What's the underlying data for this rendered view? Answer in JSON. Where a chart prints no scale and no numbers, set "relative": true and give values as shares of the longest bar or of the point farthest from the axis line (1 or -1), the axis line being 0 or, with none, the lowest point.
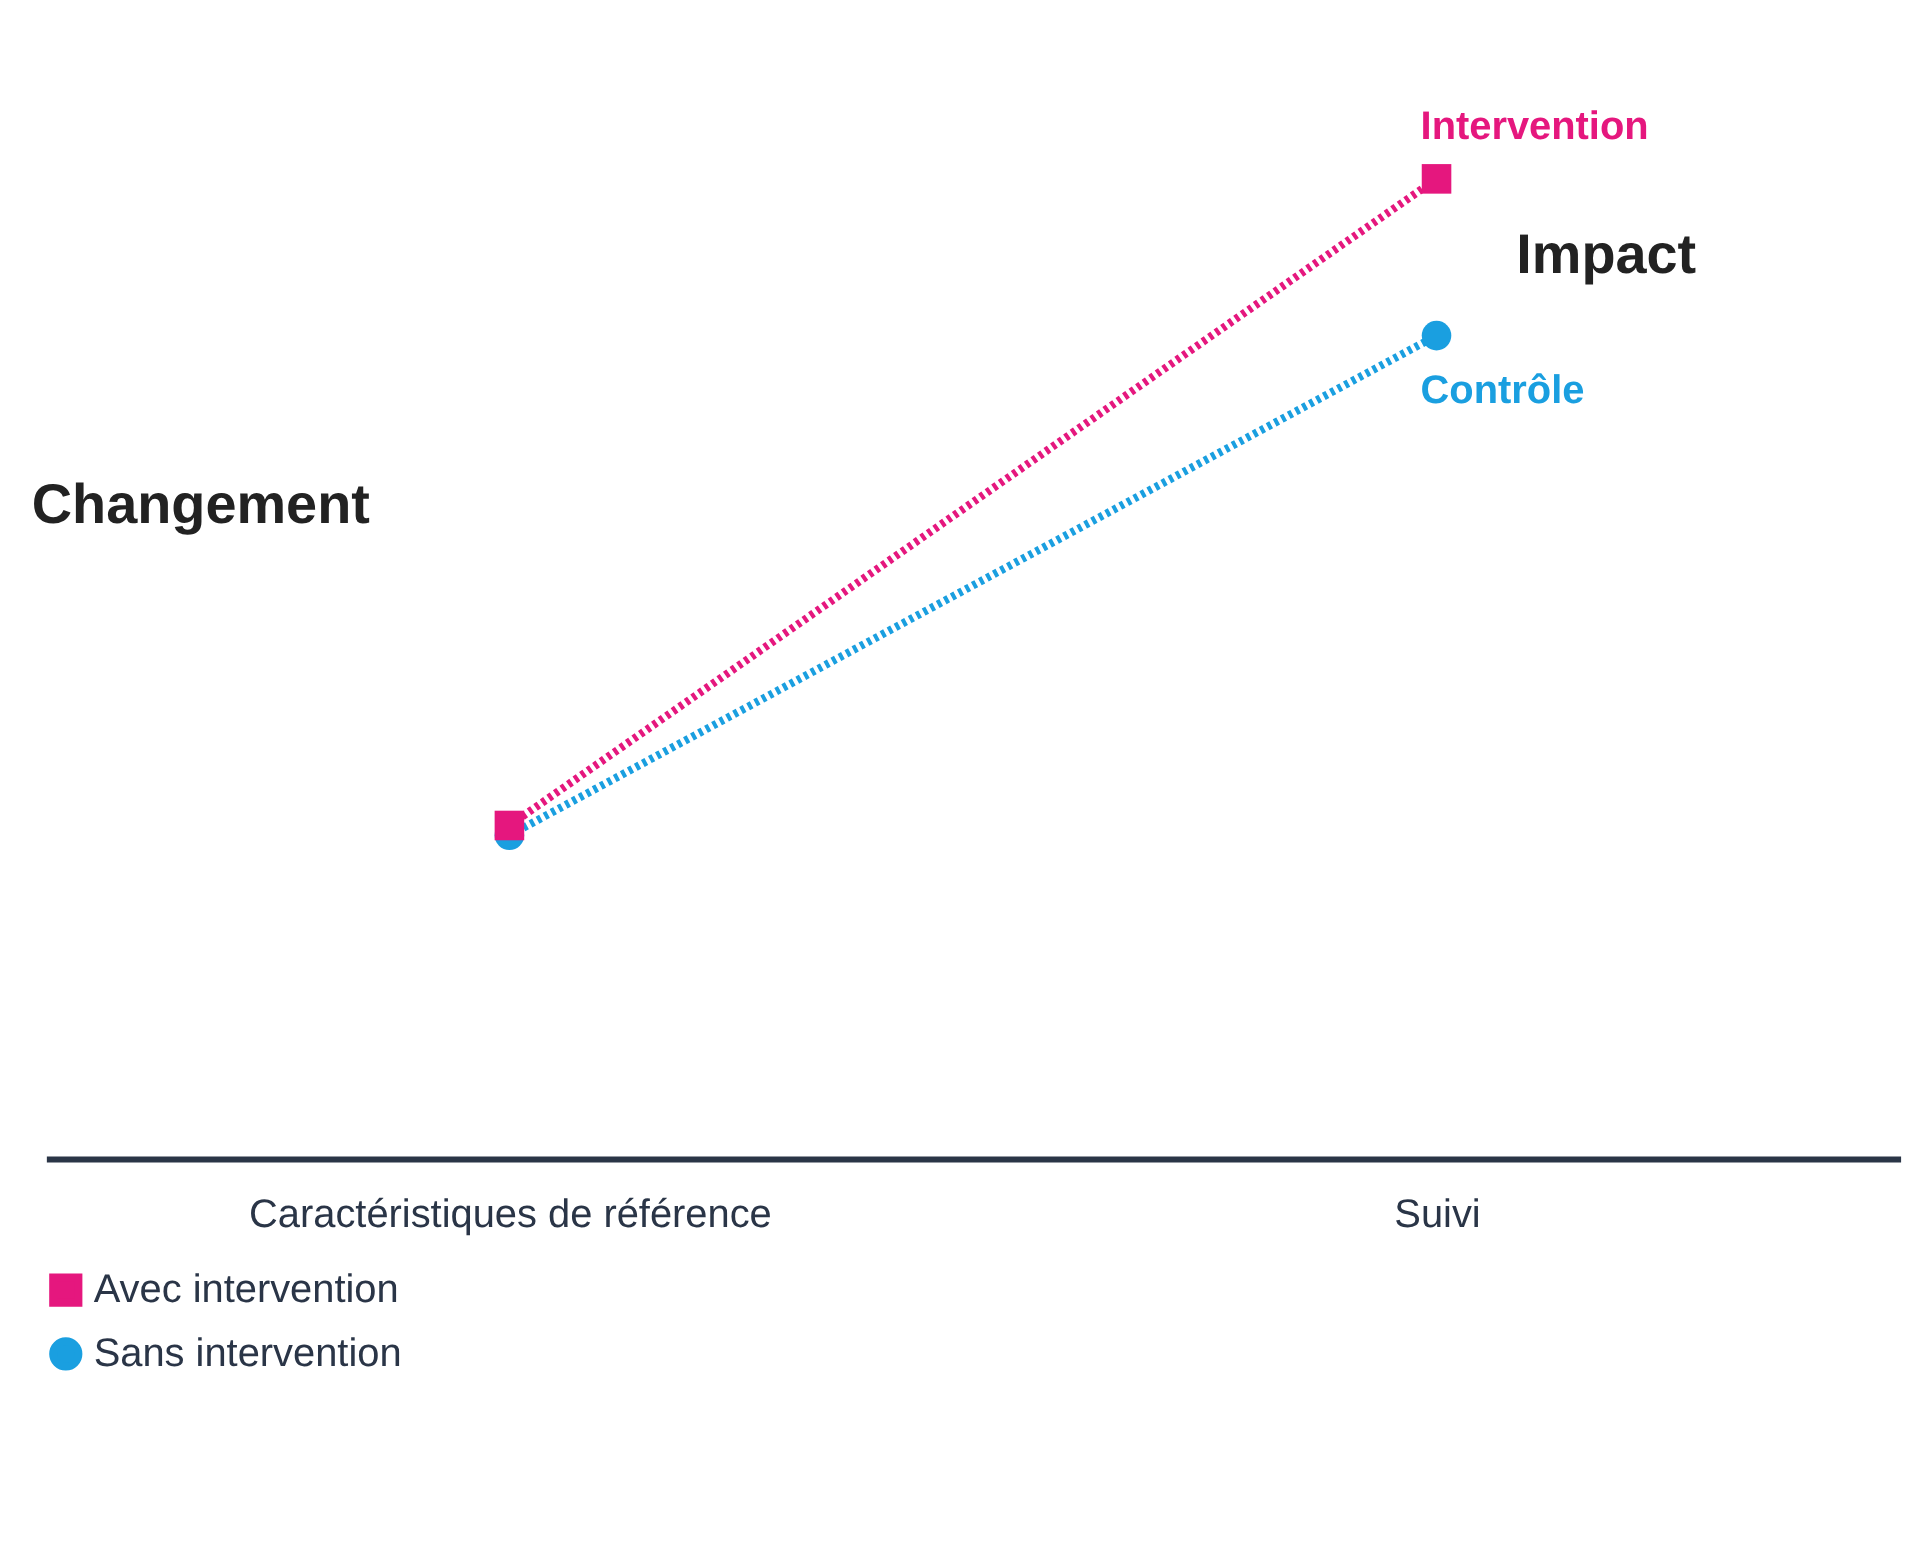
{
  "chart_data": {
    "type": "line",
    "relative": true,
    "categories": [
      "Caractéristiques de référence",
      "Suivi"
    ],
    "series": [
      {
        "name": "Avec intervention",
        "color": "#e5177e",
        "values": [
          0.34,
          1
        ],
        "marker": "square"
      },
      {
        "name": "Sans intervention",
        "color": "#1a9fe0",
        "values": [
          0.33,
          0.84
        ],
        "marker": "circle"
      }
    ],
    "line_style": "dotted",
    "legend": "bottom left",
    "annotations": [
      {
        "text": "Intervention",
        "x": "Suivi",
        "y": 1
      },
      {
        "text": "Contrôle",
        "x": "Suivi",
        "y": 0.84
      },
      "Impact",
      "Changement"
    ]
  }
}
